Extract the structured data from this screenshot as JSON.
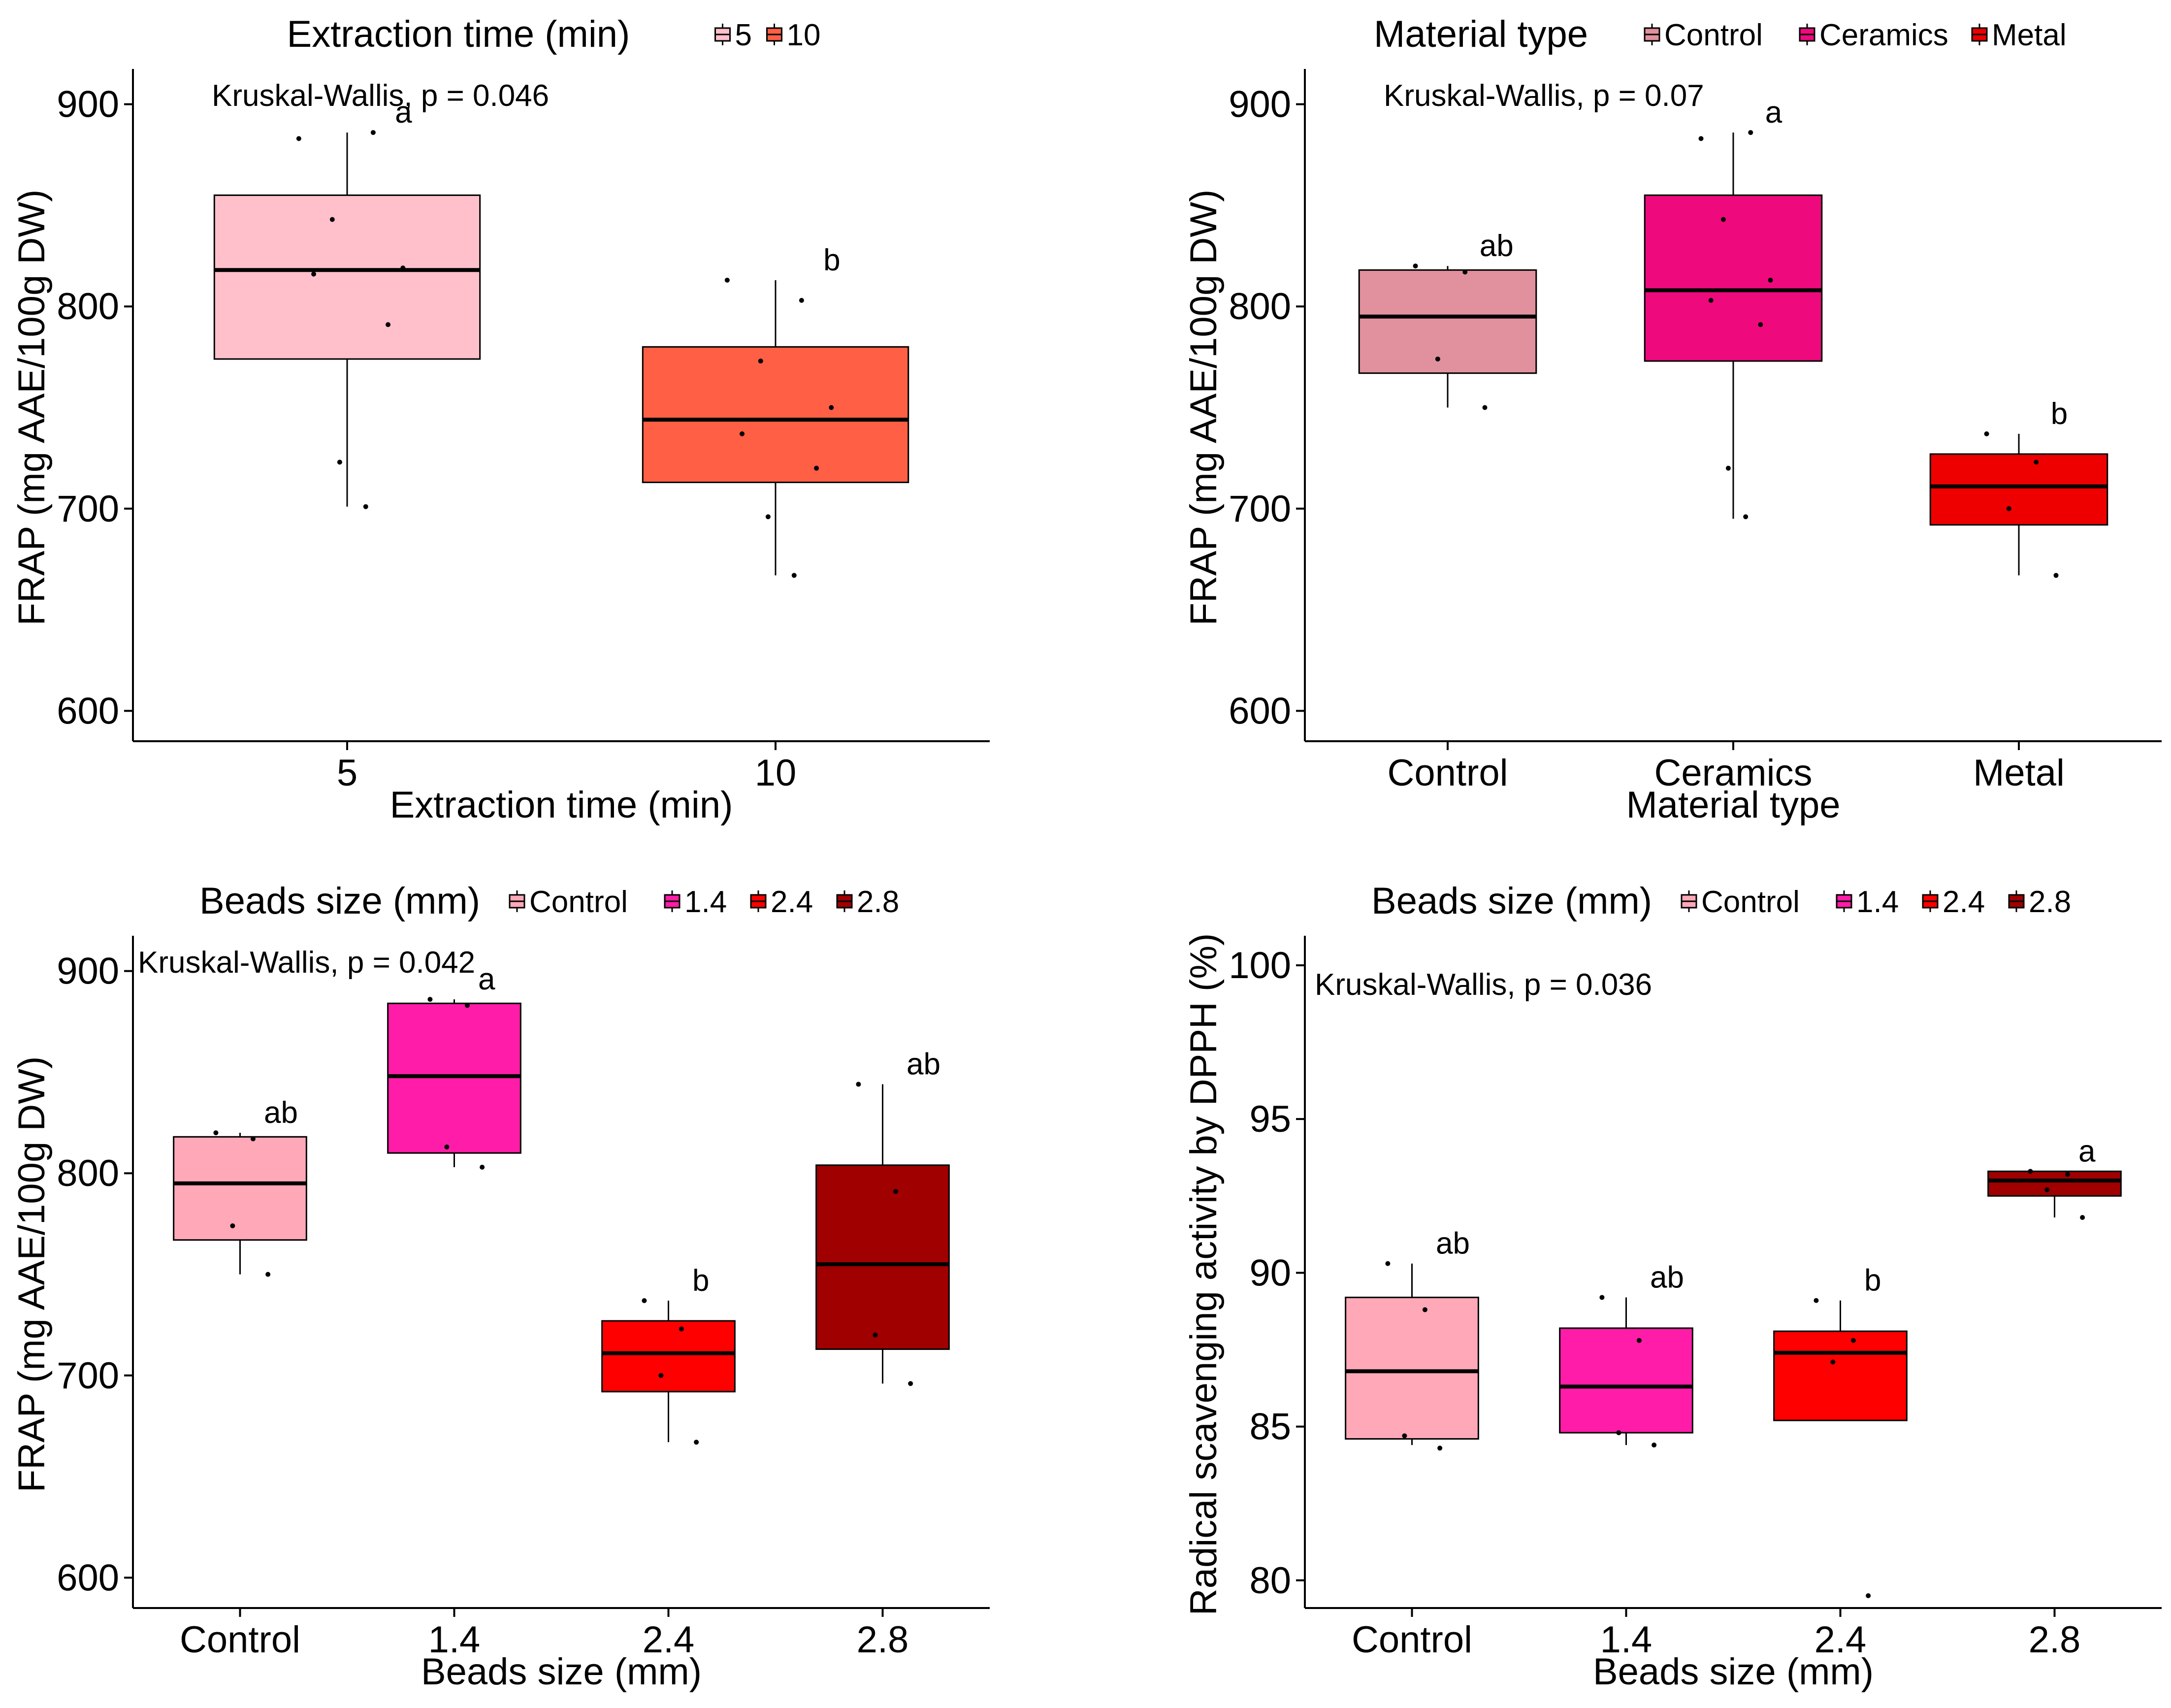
{
  "chart_data": [
    {
      "type": "boxplot",
      "legend_title": "Extraction time (min)",
      "xlabel": "Extraction time (min)",
      "ylabel": "FRAP (mg AAE/100g DW)",
      "ylim": [
        585,
        915
      ],
      "yticks": [
        600,
        700,
        800,
        900
      ],
      "stat_text": "Kruskal-Wallis, p = 0.046",
      "groups": [
        {
          "label": "5",
          "color": "#FFC0CB",
          "letter": "a",
          "q1": 774,
          "median": 818,
          "q3": 855,
          "whisker_low": 701,
          "whisker_high": 886,
          "points": [
            883,
            886,
            843,
            819,
            816,
            791,
            723,
            701
          ]
        },
        {
          "label": "10",
          "color": "#FF5F45",
          "letter": "b",
          "q1": 713,
          "median": 744,
          "q3": 780,
          "whisker_low": 667,
          "whisker_high": 813,
          "points": [
            813,
            803,
            773,
            750,
            737,
            720,
            696,
            667
          ]
        }
      ]
    },
    {
      "type": "boxplot",
      "legend_title": "Material type",
      "xlabel": "Material type",
      "ylabel": "FRAP (mg AAE/100g DW)",
      "ylim": [
        585,
        915
      ],
      "yticks": [
        600,
        700,
        800,
        900
      ],
      "stat_text": "Kruskal-Wallis, p = 0.07",
      "groups": [
        {
          "label": "Control",
          "color": "#E0919D",
          "letter": "ab",
          "q1": 767,
          "median": 795,
          "q3": 818,
          "whisker_low": 750,
          "whisker_high": 820,
          "points": [
            820,
            817,
            774,
            750
          ]
        },
        {
          "label": "Ceramics",
          "color": "#EE0A7D",
          "letter": "a",
          "q1": 773,
          "median": 808,
          "q3": 855,
          "whisker_low": 695,
          "whisker_high": 886,
          "points": [
            883,
            886,
            843,
            813,
            803,
            791,
            720,
            696
          ]
        },
        {
          "label": "Metal",
          "color": "#EE0000",
          "letter": "b",
          "q1": 692,
          "median": 711,
          "q3": 727,
          "whisker_low": 667,
          "whisker_high": 737,
          "points": [
            737,
            723,
            700,
            667
          ]
        }
      ]
    },
    {
      "type": "boxplot",
      "legend_title": "Beads size (mm)",
      "xlabel": "Beads size (mm)",
      "ylabel": "FRAP (mg AAE/100g DW)",
      "ylim": [
        585,
        915
      ],
      "yticks": [
        600,
        700,
        800,
        900
      ],
      "stat_text": "Kruskal-Wallis, p = 0.042",
      "groups": [
        {
          "label": "Control",
          "color": "#FFA8B8",
          "letter": "ab",
          "q1": 767,
          "median": 795,
          "q3": 818,
          "whisker_low": 750,
          "whisker_high": 820,
          "points": [
            820,
            817,
            774,
            750
          ]
        },
        {
          "label": "1.4",
          "color": "#FF1CA8",
          "letter": "a",
          "q1": 810,
          "median": 848,
          "q3": 884,
          "whisker_low": 803,
          "whisker_high": 886,
          "points": [
            886,
            883,
            813,
            803
          ]
        },
        {
          "label": "2.4",
          "color": "#FF0000",
          "letter": "b",
          "q1": 692,
          "median": 711,
          "q3": 727,
          "whisker_low": 667,
          "whisker_high": 737,
          "points": [
            737,
            723,
            700,
            667
          ]
        },
        {
          "label": "2.8",
          "color": "#A00000",
          "letter": "ab",
          "q1": 713,
          "median": 755,
          "q3": 804,
          "whisker_low": 696,
          "whisker_high": 844,
          "points": [
            844,
            791,
            720,
            696
          ]
        }
      ]
    },
    {
      "type": "boxplot",
      "legend_title": "Beads size (mm)",
      "xlabel": "Beads size (mm)",
      "ylabel": "Radical scavenging activity by DPPH (%)",
      "ylim": [
        79.1,
        100.8
      ],
      "yticks": [
        80,
        85,
        90,
        95,
        100
      ],
      "stat_text": "Kruskal-Wallis, p = 0.036",
      "groups": [
        {
          "label": "Control",
          "color": "#FFA8B8",
          "letter": "ab",
          "q1": 84.6,
          "median": 86.8,
          "q3": 89.2,
          "whisker_low": 84.4,
          "whisker_high": 90.3,
          "points": [
            90.3,
            88.8,
            84.7,
            84.3
          ]
        },
        {
          "label": "1.4",
          "color": "#FF1CA8",
          "letter": "ab",
          "q1": 84.8,
          "median": 86.3,
          "q3": 88.2,
          "whisker_low": 84.4,
          "whisker_high": 89.2,
          "points": [
            89.2,
            87.8,
            84.8,
            84.4
          ]
        },
        {
          "label": "2.4",
          "color": "#FF0000",
          "letter": "b",
          "q1": 85.2,
          "median": 87.4,
          "q3": 88.1,
          "whisker_low": 85.2,
          "whisker_high": 89.1,
          "points": [
            89.1,
            87.8,
            87.1,
            79.5
          ]
        },
        {
          "label": "2.8",
          "color": "#A00000",
          "letter": "a",
          "q1": 92.5,
          "median": 93.0,
          "q3": 93.3,
          "whisker_low": 91.8,
          "whisker_high": 93.3,
          "points": [
            93.3,
            93.2,
            92.7,
            91.8
          ]
        }
      ]
    }
  ]
}
